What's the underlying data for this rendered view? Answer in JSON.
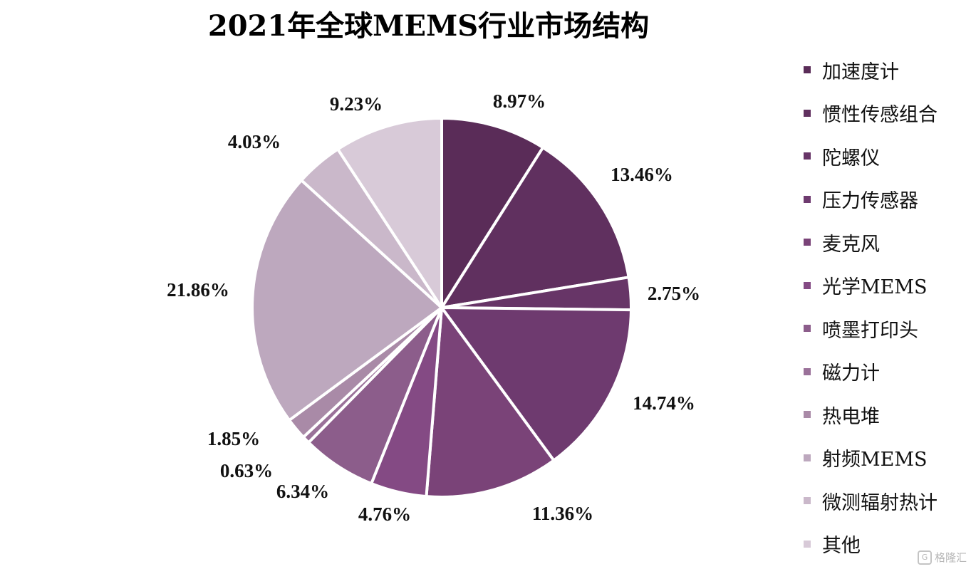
{
  "chart_data": {
    "type": "pie",
    "title": "2021年全球MEMS行业市场结构",
    "slices": [
      {
        "name": "加速度计",
        "value": 8.97,
        "label": "8.97%",
        "color": "#5a2c58"
      },
      {
        "name": "惯性传感组合",
        "value": 13.46,
        "label": "13.46%",
        "color": "#60305f"
      },
      {
        "name": "陀螺仪",
        "value": 2.75,
        "label": "2.75%",
        "color": "#673567"
      },
      {
        "name": "压力传感器",
        "value": 14.74,
        "label": "14.74%",
        "color": "#6e3a6f"
      },
      {
        "name": "麦克风",
        "value": 11.36,
        "label": "11.36%",
        "color": "#7a4378"
      },
      {
        "name": "光学MEMS",
        "value": 4.76,
        "label": "4.76%",
        "color": "#844a84"
      },
      {
        "name": "喷墨打印头",
        "value": 6.34,
        "label": "6.34%",
        "color": "#8c5d8b"
      },
      {
        "name": "磁力计",
        "value": 0.63,
        "label": "0.63%",
        "color": "#9a7199"
      },
      {
        "name": "热电堆",
        "value": 1.85,
        "label": "1.85%",
        "color": "#a98aa7"
      },
      {
        "name": "射频MEMS",
        "value": 21.86,
        "label": "21.86%",
        "color": "#bda8be"
      },
      {
        "name": "微测辐射热计",
        "value": 4.03,
        "label": "4.03%",
        "color": "#cab8ca"
      },
      {
        "name": "其他",
        "value": 9.23,
        "label": "9.23%",
        "color": "#d8cad8"
      }
    ],
    "legend_position": "right"
  },
  "watermark": {
    "icon": "G",
    "text": "格隆汇"
  }
}
